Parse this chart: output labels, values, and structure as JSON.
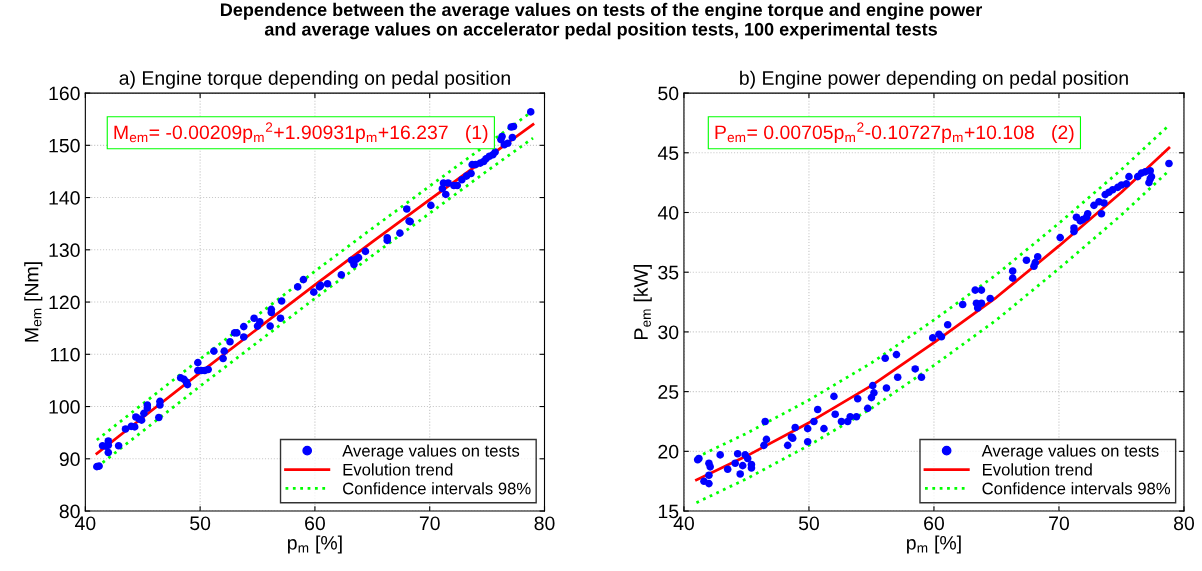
{
  "chart_data": [
    {
      "type": "scatter",
      "title": "a) Engine torque depending on pedal position",
      "xlabel": "p$_{m}$ [%]",
      "ylabel": "M$_{em}$ [Nm]",
      "annotations": [
        "Dependence between the average values on tests of the engine torque and engine power\nand average values on accelerator pedal position tests, 100 experimental tests",
        "M$_{em}$= -0.00209p$_{m}$$^{2}$+1.90931p$_{m}$+16.237   (1)"
      ],
      "xlim": [
        40,
        80
      ],
      "xticks": [
        40,
        50,
        60,
        70,
        80
      ],
      "ylim": [
        80,
        160
      ],
      "yticks": [
        80,
        90,
        100,
        110,
        120,
        130,
        140,
        150,
        160
      ],
      "grid": true,
      "legend": "bottom right",
      "series": [
        {
          "name": "Average values on tests",
          "marker": "circle",
          "color": "#0000ff",
          "x": [
            78.8,
            77.3,
            77.1,
            76.3,
            76.2,
            76.5,
            76.8,
            77.2,
            75.7,
            75.5,
            75.2,
            74.9,
            74.7,
            74.4,
            74.0,
            73.7,
            73.6,
            73.2,
            72.8,
            71.6,
            72.1,
            72.4,
            71.2,
            71.1,
            71.4,
            70.1,
            68.0,
            68.2,
            68.3,
            67.4,
            66.3,
            66.3,
            64.4,
            63.8,
            63.6,
            63.4,
            63.2,
            62.3,
            61.1,
            60.5,
            60.4,
            59.9,
            59.0,
            58.5,
            57.1,
            57.0,
            56.2,
            56.2,
            56.1,
            55.2,
            55.0,
            54.7,
            53.8,
            53.8,
            53.2,
            53.0,
            52.6,
            52.1,
            52.0,
            51.2,
            50.7,
            50.4,
            50.1,
            49.8,
            49.8,
            48.9,
            48.8,
            48.6,
            48.3,
            46.5,
            46.5,
            46.4,
            45.4,
            45.4,
            45.1,
            44.9,
            44.7,
            44.4,
            44.3,
            44.0,
            43.5,
            42.9,
            42.0,
            42.0,
            42.0,
            41.8,
            41.5,
            41.2,
            41.0
          ],
          "values": [
            156.4,
            153.6,
            153.5,
            151.7,
            151.1,
            150.1,
            150.4,
            151.5,
            148.7,
            148.2,
            147.9,
            147.4,
            146.9,
            146.6,
            146.3,
            146.3,
            144.6,
            144.1,
            143.4,
            142.8,
            142.3,
            142.3,
            142.8,
            141.7,
            140.6,
            138.5,
            137.8,
            135.5,
            135.4,
            133.2,
            132.3,
            131.8,
            129.7,
            128.5,
            128.2,
            127.2,
            128.0,
            125.2,
            123.5,
            123.2,
            122.9,
            121.9,
            124.3,
            122.9,
            120.2,
            116.9,
            118.6,
            118.0,
            115.4,
            116.2,
            115.4,
            116.9,
            115.3,
            113.3,
            114.1,
            114.1,
            112.4,
            110.6,
            109.2,
            110.6,
            107.1,
            106.9,
            106.9,
            106.9,
            108.4,
            104.2,
            104.7,
            105.2,
            105.5,
            101.0,
            100.3,
            97.9,
            100.3,
            99.7,
            98.7,
            97.4,
            97.6,
            98.0,
            96.1,
            96.2,
            95.7,
            92.5,
            93.4,
            92.6,
            91.2,
            92.4,
            92.5,
            88.6,
            88.5
          ]
        },
        {
          "name": "Evolution trend",
          "type": "line",
          "color": "#ff0000",
          "line_style": "solid",
          "x": [
            41,
            45,
            50,
            55,
            60,
            65,
            70,
            79
          ],
          "values": [
            91.0,
            97.9,
            106.5,
            114.9,
            123.3,
            131.5,
            139.6,
            154.0
          ]
        },
        {
          "name": "Confidence intervals 98%",
          "type": "line",
          "color": "#00ff00",
          "line_style": "dotted",
          "x": [
            41,
            45,
            50,
            55,
            60,
            65,
            70,
            79
          ],
          "values": [
            93.6,
            100.5,
            109.1,
            117.5,
            125.9,
            134.1,
            142.2,
            156.6
          ]
        },
        {
          "type": "line",
          "color": "#00ff00",
          "line_style": "dotted",
          "x": [
            41,
            45,
            50,
            55,
            60,
            65,
            70,
            75,
            79
          ],
          "values": [
            88.4,
            95.3,
            103.9,
            112.3,
            120.7,
            128.9,
            137.0,
            145.1,
            151.4
          ]
        }
      ]
    },
    {
      "type": "scatter",
      "title": "b) Engine power depending on pedal position",
      "xlabel": "p$_{m}$ [%]",
      "ylabel": "P$_{em}$ [kW]",
      "annotations": [
        "P$_{em}$= 0.00705p$_{m}$$^{2}$-0.10727p$_{m}$+10.108   (2)"
      ],
      "xlim": [
        40,
        80
      ],
      "xticks": [
        40,
        50,
        60,
        70,
        80
      ],
      "ylim": [
        15,
        50
      ],
      "yticks": [
        15,
        20,
        25,
        30,
        35,
        40,
        45,
        50
      ],
      "grid": true,
      "legend": "bottom right",
      "series": [
        {
          "name": "Average values on tests",
          "marker": "circle",
          "color": "#0000ff",
          "x": [
            78.8,
            77.3,
            76.9,
            77.3,
            77.2,
            77.4,
            76.6,
            76.3,
            75.6,
            75.4,
            75.0,
            74.7,
            74.3,
            74.0,
            73.7,
            73.4,
            73.6,
            73.2,
            72.8,
            72.3,
            72.2,
            71.9,
            71.7,
            71.4,
            71.2,
            71.2,
            70.1,
            68.3,
            68.1,
            68.0,
            67.4,
            66.3,
            66.3,
            64.5,
            63.8,
            63.3,
            63.4,
            63.8,
            63.5,
            62.3,
            61.1,
            60.4,
            59.9,
            60.6,
            57.0,
            56.1,
            58.5,
            59.0,
            57.1,
            56.2,
            55.1,
            55.2,
            55.0,
            54.7,
            53.9,
            53.8,
            53.3,
            53.1,
            52.6,
            52.1,
            52.0,
            51.2,
            50.7,
            50.4,
            49.9,
            49.9,
            48.9,
            48.7,
            48.6,
            48.3,
            46.5,
            46.6,
            46.4,
            45.4,
            45.4,
            45.1,
            44.9,
            44.7,
            44.5,
            44.3,
            44.1,
            43.5,
            42.9,
            42.1,
            42.0,
            42.0,
            42.0,
            41.6,
            41.2,
            41.1
          ],
          "values": [
            44.1,
            43.5,
            43.4,
            42.8,
            42.5,
            43.0,
            43.3,
            43.0,
            43.0,
            42.4,
            42.3,
            42.1,
            41.9,
            41.7,
            41.5,
            39.9,
            40.8,
            40.9,
            40.6,
            39.9,
            39.6,
            39.4,
            39.3,
            39.6,
            38.4,
            38.7,
            37.9,
            36.3,
            35.8,
            35.5,
            36.0,
            35.1,
            34.5,
            32.8,
            33.5,
            33.5,
            32.4,
            32.4,
            32.0,
            32.3,
            30.6,
            29.8,
            29.5,
            29.6,
            28.1,
            27.8,
            26.9,
            26.2,
            26.2,
            25.3,
            25.5,
            24.9,
            24.5,
            23.6,
            24.4,
            22.9,
            22.9,
            22.5,
            22.5,
            23.1,
            24.6,
            21.9,
            23.5,
            22.5,
            21.9,
            20.8,
            22.0,
            21.1,
            21.2,
            20.5,
            22.5,
            21.0,
            20.5,
            18.9,
            18.6,
            19.4,
            19.7,
            18.8,
            18.1,
            19.8,
            19.0,
            18.5,
            19.7,
            18.7,
            19.0,
            18.0,
            17.3,
            17.5,
            19.4,
            19.3
          ]
        },
        {
          "name": "Evolution trend",
          "type": "line",
          "color": "#ff0000",
          "line_style": "solid",
          "x": [
            41,
            45,
            50,
            55,
            60,
            65,
            70,
            75,
            78.8
          ],
          "values": [
            17.6,
            19.6,
            22.4,
            25.5,
            29.1,
            32.9,
            37.2,
            41.7,
            45.4
          ]
        },
        {
          "name": "Confidence intervals 98%",
          "type": "line",
          "color": "#00ff00",
          "line_style": "dotted",
          "x": [
            41,
            45,
            50,
            55,
            60,
            65,
            70,
            75,
            78.8
          ],
          "values": [
            19.5,
            21.5,
            24.3,
            27.4,
            31.0,
            34.8,
            39.1,
            43.6,
            47.3
          ]
        },
        {
          "type": "line",
          "color": "#00ff00",
          "line_style": "dotted",
          "x": [
            41,
            45,
            50,
            55,
            60,
            65,
            70,
            75,
            78.8
          ],
          "values": [
            15.7,
            17.7,
            20.5,
            23.6,
            27.2,
            31.0,
            35.3,
            39.8,
            43.5
          ]
        }
      ]
    }
  ]
}
